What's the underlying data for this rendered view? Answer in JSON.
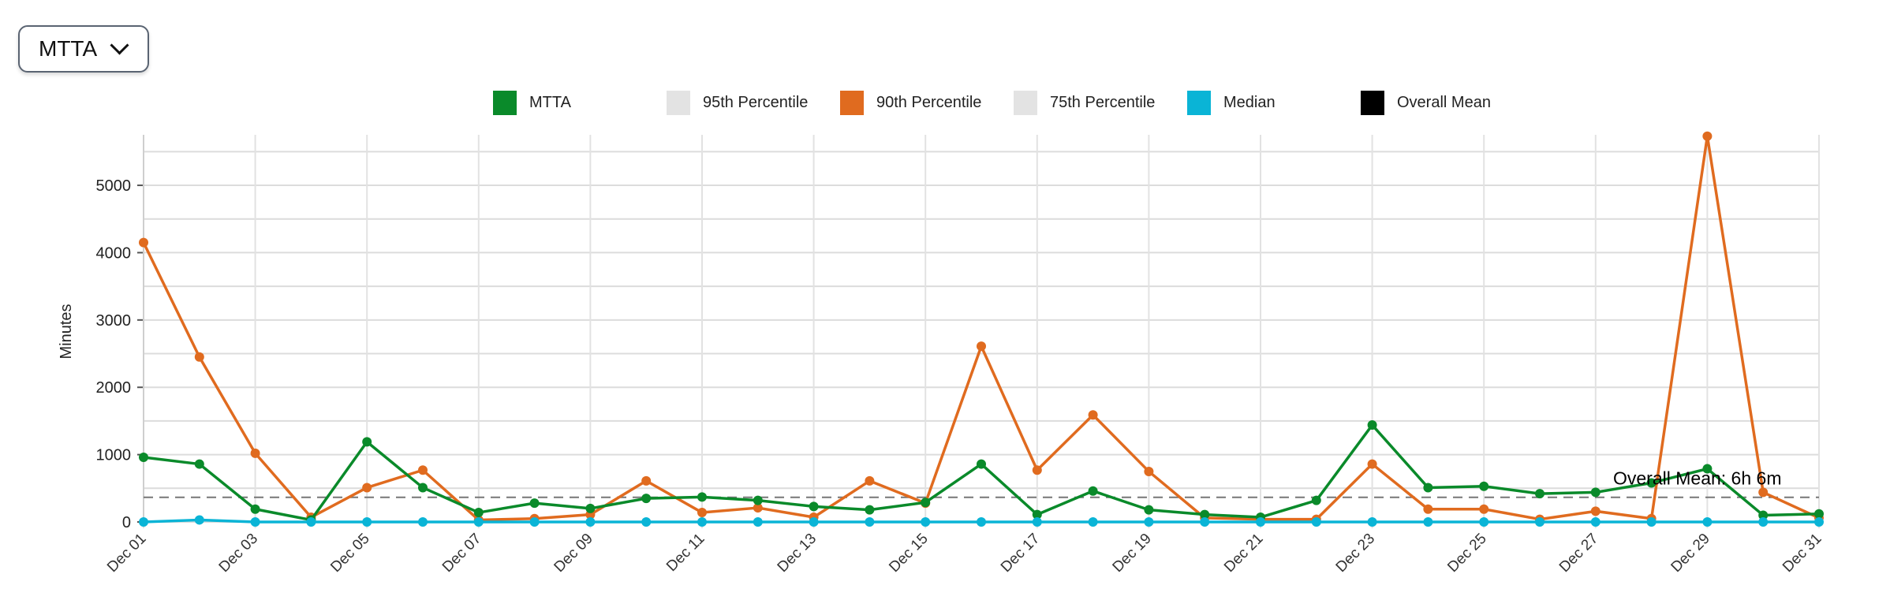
{
  "dropdown": {
    "selected": "MTTA"
  },
  "chart_data": {
    "type": "line",
    "ylabel": "Minutes",
    "xlabel": "",
    "ylim": [
      0,
      5750
    ],
    "yticks": [
      0,
      1000,
      2000,
      3000,
      4000,
      5000
    ],
    "grid": true,
    "legend_position": "top-center",
    "categories": [
      "Dec 01",
      "Dec 02",
      "Dec 03",
      "Dec 04",
      "Dec 05",
      "Dec 06",
      "Dec 07",
      "Dec 08",
      "Dec 09",
      "Dec 10",
      "Dec 11",
      "Dec 12",
      "Dec 13",
      "Dec 14",
      "Dec 15",
      "Dec 16",
      "Dec 17",
      "Dec 18",
      "Dec 19",
      "Dec 20",
      "Dec 21",
      "Dec 22",
      "Dec 23",
      "Dec 24",
      "Dec 25",
      "Dec 26",
      "Dec 27",
      "Dec 28",
      "Dec 29",
      "Dec 30",
      "Dec 31"
    ],
    "xticks": [
      "Dec 01",
      "Dec 03",
      "Dec 05",
      "Dec 07",
      "Dec 09",
      "Dec 11",
      "Dec 13",
      "Dec 15",
      "Dec 17",
      "Dec 19",
      "Dec 21",
      "Dec 23",
      "Dec 25",
      "Dec 27",
      "Dec 29",
      "Dec 31"
    ],
    "legend": [
      {
        "name": "MTTA",
        "color": "#0a8a2a"
      },
      {
        "name": "95th Percentile",
        "color": "#e3e3e3"
      },
      {
        "name": "90th Percentile",
        "color": "#e06b1f"
      },
      {
        "name": "75th Percentile",
        "color": "#e3e3e3"
      },
      {
        "name": "Median",
        "color": "#0ab4d6"
      },
      {
        "name": "Overall Mean",
        "color": "#000000"
      }
    ],
    "series": [
      {
        "name": "90th Percentile",
        "color": "#e06b1f",
        "values": [
          4150,
          2450,
          1020,
          70,
          510,
          770,
          30,
          50,
          110,
          610,
          140,
          210,
          70,
          610,
          280,
          2610,
          770,
          1590,
          750,
          60,
          40,
          40,
          860,
          190,
          190,
          40,
          160,
          50,
          5730,
          440,
          60
        ]
      },
      {
        "name": "MTTA",
        "color": "#0a8a2a",
        "values": [
          960,
          860,
          190,
          30,
          1190,
          510,
          140,
          280,
          200,
          350,
          370,
          320,
          230,
          180,
          290,
          860,
          110,
          460,
          180,
          110,
          70,
          320,
          1440,
          510,
          530,
          420,
          440,
          580,
          790,
          100,
          120
        ]
      },
      {
        "name": "Median",
        "color": "#0ab4d6",
        "values": [
          0,
          30,
          0,
          0,
          0,
          0,
          0,
          0,
          0,
          0,
          0,
          0,
          0,
          0,
          0,
          0,
          0,
          0,
          0,
          0,
          0,
          0,
          0,
          0,
          0,
          0,
          0,
          0,
          0,
          0,
          0
        ]
      }
    ],
    "overall_mean": {
      "value": 366,
      "label": "Overall Mean: 6h 6m"
    }
  }
}
